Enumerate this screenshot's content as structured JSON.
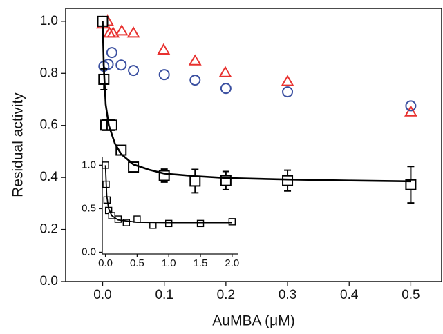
{
  "chart_data": [
    {
      "type": "scatter",
      "xlabel": "AuMBA (μM)",
      "ylabel": "Residual activity",
      "xlim": [
        -0.06,
        0.55
      ],
      "ylim": [
        0,
        1.05
      ],
      "xticks": [
        {
          "value": 0,
          "label": "0.0"
        },
        0.1,
        0.2,
        0.3,
        0.4,
        0.5
      ],
      "yticks": [
        {
          "value": 0,
          "label": "0.0"
        },
        0.2,
        0.4,
        0.6,
        0.8,
        {
          "value": 1,
          "label": "1.0"
        }
      ],
      "series": [
        {
          "color": "#e8312f",
          "marker": "triangle",
          "x": [
            0,
            0.008,
            0.011,
            0.017,
            0.031,
            0.05,
            0.099,
            0.15,
            0.199,
            0.3,
            0.5
          ],
          "values": [
            0.99,
            1.0,
            0.955,
            0.955,
            0.963,
            0.955,
            0.89,
            0.848,
            0.803,
            0.769,
            0.652
          ]
        },
        {
          "color": "#3a4fa0",
          "marker": "circle",
          "x": [
            0,
            0.002,
            0.009,
            0.015,
            0.03,
            0.05,
            0.1,
            0.15,
            0.2,
            0.3,
            0.5
          ],
          "values": [
            1.0,
            0.827,
            0.835,
            0.88,
            0.832,
            0.811,
            0.795,
            0.774,
            0.742,
            0.729,
            0.675
          ]
        },
        {
          "color": "#000000",
          "marker": "square",
          "x": [
            0,
            0.002,
            0.005,
            0.015,
            0.03,
            0.05,
            0.1,
            0.15,
            0.2,
            0.3,
            0.5
          ],
          "values": [
            1.0,
            0.777,
            0.601,
            0.601,
            0.505,
            0.44,
            0.407,
            0.386,
            0.388,
            0.388,
            0.372
          ],
          "errors": [
            0.01,
            0.04,
            0.02,
            0.02,
            0.01,
            0.015,
            0.025,
            0.045,
            0.035,
            0.04,
            0.07
          ]
        },
        {
          "color": "#000000",
          "marker": "line",
          "x": [
            0,
            0.002,
            0.005,
            0.01,
            0.02,
            0.03,
            0.05,
            0.075,
            0.1,
            0.15,
            0.2,
            0.3,
            0.4,
            0.5
          ],
          "values": [
            1.0,
            0.82,
            0.68,
            0.6,
            0.53,
            0.49,
            0.45,
            0.43,
            0.415,
            0.405,
            0.398,
            0.392,
            0.388,
            0.385
          ]
        }
      ]
    },
    {
      "type": "scatter",
      "xlim": [
        -0.05,
        2.1
      ],
      "ylim": [
        -0.02,
        1.09
      ],
      "xticks": [
        {
          "value": 0,
          "label": "0.0"
        },
        0.5,
        {
          "value": 1,
          "label": "1.0"
        },
        1.5,
        {
          "value": 2,
          "label": "2.0"
        }
      ],
      "yticks": [
        {
          "value": 0,
          "label": "0.0"
        },
        0.5,
        {
          "value": 1,
          "label": "1.0"
        }
      ],
      "series": [
        {
          "color": "#000000",
          "marker": "square",
          "x": [
            0,
            0.01,
            0.025,
            0.05,
            0.1,
            0.2,
            0.33,
            0.5,
            0.75,
            1.0,
            1.5,
            2.0
          ],
          "values": [
            1.0,
            0.78,
            0.6,
            0.48,
            0.42,
            0.38,
            0.34,
            0.38,
            0.31,
            0.33,
            0.33,
            0.35
          ]
        },
        {
          "color": "#000000",
          "marker": "line",
          "x": [
            0,
            0.02,
            0.05,
            0.1,
            0.2,
            0.5,
            1.0,
            2.0
          ],
          "values": [
            1.0,
            0.65,
            0.5,
            0.42,
            0.37,
            0.345,
            0.34,
            0.34
          ]
        }
      ]
    }
  ]
}
